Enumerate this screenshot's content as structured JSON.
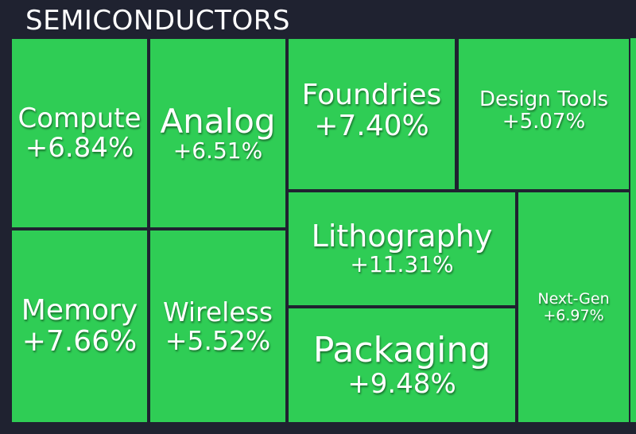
{
  "header": {
    "title": "SEMICONDUCTORS"
  },
  "colors": {
    "positive": "#2fcd55",
    "background": "#1f2230",
    "text": "#ffffff"
  },
  "tiles": [
    {
      "name": "Compute",
      "change": "+6.84%"
    },
    {
      "name": "Analog",
      "change": "+6.51%"
    },
    {
      "name": "Foundries",
      "change": "+7.40%"
    },
    {
      "name": "Design Tools",
      "change": "+5.07%"
    },
    {
      "name": "Memory",
      "change": "+7.66%"
    },
    {
      "name": "Wireless",
      "change": "+5.52%"
    },
    {
      "name": "Lithography",
      "change": "+11.31%"
    },
    {
      "name": "Packaging",
      "change": "+9.48%"
    },
    {
      "name": "Next-Gen",
      "change": "+6.97%"
    }
  ]
}
